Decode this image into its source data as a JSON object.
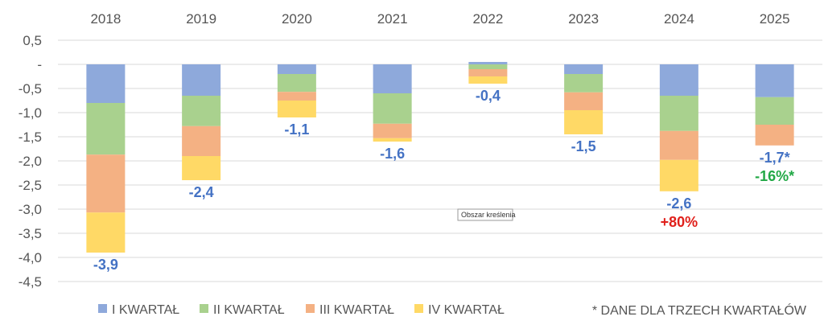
{
  "chart_data": {
    "type": "bar",
    "stacked": true,
    "categories": [
      "2018",
      "2019",
      "2020",
      "2021",
      "2022",
      "2023",
      "2024",
      "2025"
    ],
    "series": [
      {
        "name": "I KWARTAŁ",
        "color": "#8EA9DB",
        "values": [
          -0.8,
          -0.65,
          -0.2,
          -0.6,
          0.05,
          -0.2,
          -0.65,
          -0.68
        ]
      },
      {
        "name": "II KWARTAŁ",
        "color": "#A9D18E",
        "values": [
          -1.07,
          -0.63,
          -0.37,
          -0.63,
          -0.1,
          -0.38,
          -0.73,
          -0.57
        ]
      },
      {
        "name": "III KWARTAŁ",
        "color": "#F4B183",
        "values": [
          -1.2,
          -0.62,
          -0.18,
          -0.3,
          -0.15,
          -0.37,
          -0.6,
          -0.43
        ]
      },
      {
        "name": "IV KWARTAŁ",
        "color": "#FFD966",
        "values": [
          -0.83,
          -0.5,
          -0.35,
          -0.07,
          -0.15,
          -0.5,
          -0.65,
          0
        ]
      }
    ],
    "totals": [
      "-3,9",
      "-2,4",
      "-1,1",
      "-1,6",
      "-0,4",
      "-1,5",
      "-2,6",
      "-1,7*"
    ],
    "annotations": [
      {
        "category": "2024",
        "text": "+80%",
        "color": "#E0201B"
      },
      {
        "category": "2025",
        "text": "-16%*",
        "color": "#22A846"
      }
    ],
    "yticks": [
      "0,5",
      "-",
      "-0,5",
      "-1,0",
      "-1,5",
      "-2,0",
      "-2,5",
      "-3,0",
      "-3,5",
      "-4,0",
      "-4,5"
    ],
    "ytick_values": [
      0.5,
      0,
      -0.5,
      -1.0,
      -1.5,
      -2.0,
      -2.5,
      -3.0,
      -3.5,
      -4.0,
      -4.5
    ],
    "ylim": [
      -4.5,
      0.5
    ],
    "x_axis_position": "top",
    "grid": true,
    "legend_position": "bottom",
    "footnote": "* DANE DLA TRZECH KWARTAŁÓW",
    "tooltip": "Obszar kreślenia",
    "colors": {
      "total_label": "#4472C4",
      "grid": "#D9D9D9",
      "text": "#555555"
    }
  }
}
